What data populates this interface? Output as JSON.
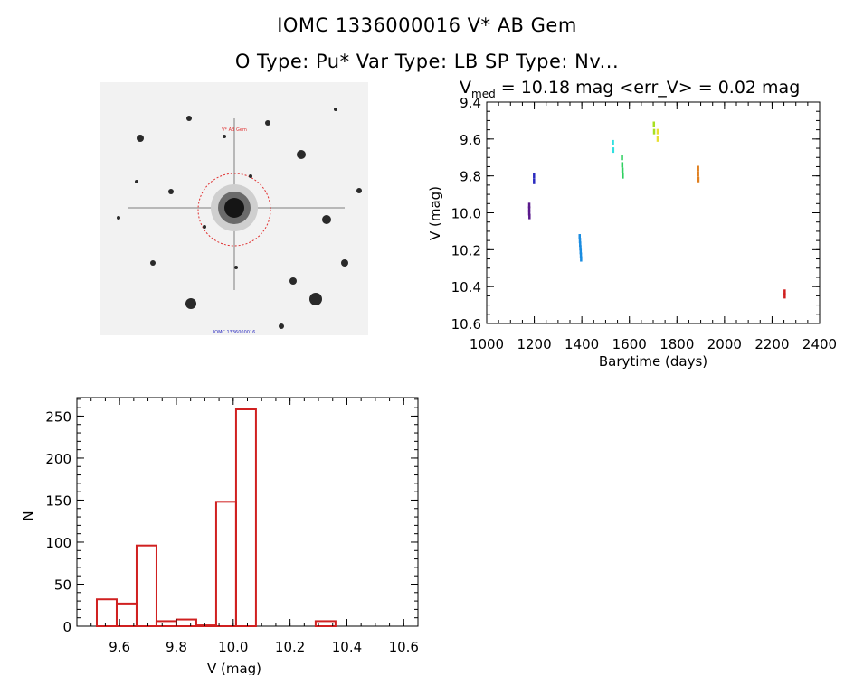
{
  "header": {
    "line1": "IOMC 1336000016   V* AB Gem",
    "line2": "O Type: Pu*  Var Type: LB  SP Type: Nv..."
  },
  "image_stamp": {
    "label_top": "V* AB Gem",
    "label_bottom": "IOMC 1336000016"
  },
  "chart_data": [
    {
      "type": "scatter",
      "title": "V_med = 10.18 mag <err_V> = 0.02 mag",
      "title_parts": {
        "v": "V",
        "sub": "med",
        "rest": " = 10.18 mag <err_V> = 0.02 mag"
      },
      "xlabel": "Barytime (days)",
      "ylabel": "V (mag)",
      "xlim": [
        1000,
        2400
      ],
      "ylim": [
        10.6,
        9.4
      ],
      "y_inverted": true,
      "xticks": [
        1000,
        1200,
        1400,
        1600,
        1800,
        2000,
        2200,
        2400
      ],
      "yticks": [
        "9.4",
        "9.6",
        "9.8",
        "10.0",
        "10.2",
        "10.4",
        "10.6"
      ],
      "series": [
        {
          "color": "#5a1a8c",
          "x": [
            1178,
            1178,
            1178,
            1179
          ],
          "y": [
            9.96,
            9.98,
            10.0,
            10.02
          ]
        },
        {
          "color": "#2b2bbf",
          "x": [
            1198,
            1198
          ],
          "y": [
            9.8,
            9.83
          ]
        },
        {
          "color": "#1a8ce0",
          "x": [
            1390,
            1391,
            1392,
            1393,
            1394,
            1395,
            1396
          ],
          "y": [
            10.13,
            10.15,
            10.17,
            10.19,
            10.21,
            10.23,
            10.25
          ]
        },
        {
          "color": "#30e0e0",
          "x": [
            1530,
            1531
          ],
          "y": [
            9.62,
            9.66
          ]
        },
        {
          "color": "#30d060",
          "x": [
            1568,
            1569,
            1570,
            1571
          ],
          "y": [
            9.7,
            9.74,
            9.77,
            9.8
          ]
        },
        {
          "color": "#a8e020",
          "x": [
            1702,
            1703
          ],
          "y": [
            9.52,
            9.56
          ]
        },
        {
          "color": "#e8e030",
          "x": [
            1718,
            1718
          ],
          "y": [
            9.56,
            9.6
          ]
        },
        {
          "color": "#e08020",
          "x": [
            1888,
            1888,
            1889
          ],
          "y": [
            9.76,
            9.79,
            9.82
          ]
        },
        {
          "color": "#d02020",
          "x": [
            2252,
            2252
          ],
          "y": [
            10.43,
            10.45
          ]
        }
      ]
    },
    {
      "type": "bar",
      "xlabel": "V (mag)",
      "ylabel": "N",
      "xlim": [
        9.45,
        10.65
      ],
      "ylim": [
        0,
        270
      ],
      "xticks": [
        "9.6",
        "9.8",
        "10.0",
        "10.2",
        "10.4",
        "10.6"
      ],
      "yticks": [
        "0",
        "50",
        "100",
        "150",
        "200",
        "250"
      ],
      "bin_edges": [
        9.52,
        9.59,
        9.66,
        9.73,
        9.8,
        9.87,
        9.94,
        10.01,
        10.08,
        10.15,
        10.22,
        10.29,
        10.36,
        10.43,
        10.5
      ],
      "values": [
        32,
        27,
        96,
        6,
        8,
        1,
        148,
        258,
        0,
        0,
        0,
        6,
        0,
        0
      ],
      "color": "#d02020"
    }
  ]
}
